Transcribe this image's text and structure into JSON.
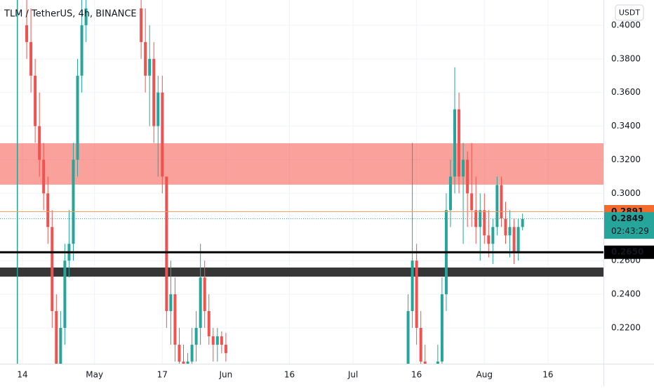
{
  "chart_data": {
    "type": "candlestick",
    "title": "TLM / TetherUS, 4h, BINANCE",
    "currency": "USDT",
    "up_color": "#26a69a",
    "down_color": "#ef5350",
    "x": [
      14,
      15,
      16,
      17,
      18,
      19,
      20,
      21,
      22,
      23,
      24,
      25,
      26,
      27,
      28,
      41,
      42,
      43,
      44,
      45,
      46,
      47,
      48,
      49,
      50,
      51,
      52,
      53,
      54,
      55,
      56,
      57,
      58,
      59,
      60,
      61,
      104,
      105,
      106,
      107,
      108,
      111,
      112,
      113,
      114,
      115,
      116,
      117,
      118,
      119,
      120,
      121,
      122,
      123,
      124,
      125,
      126,
      127,
      128,
      129,
      130,
      131
    ],
    "open": [
      0.4,
      0.39,
      0.37,
      0.34,
      0.32,
      0.3,
      0.28,
      0.23,
      0.19,
      0.22,
      0.26,
      0.27,
      0.32,
      0.37,
      0.4,
      0.41,
      0.39,
      0.37,
      0.38,
      0.34,
      0.36,
      0.31,
      0.23,
      0.24,
      0.21,
      0.2,
      0.195,
      0.2,
      0.21,
      0.22,
      0.25,
      0.23,
      0.215,
      0.21,
      0.215,
      0.21,
      0.19,
      0.23,
      0.26,
      0.22,
      0.2,
      0.19,
      0.2,
      0.24,
      0.29,
      0.31,
      0.35,
      0.31,
      0.32,
      0.3,
      0.29,
      0.28,
      0.29,
      0.275,
      0.27,
      0.28,
      0.305,
      0.285,
      0.275,
      0.28,
      0.265,
      0.28
    ],
    "high": [
      0.42,
      0.41,
      0.38,
      0.36,
      0.33,
      0.31,
      0.29,
      0.24,
      0.23,
      0.27,
      0.29,
      0.33,
      0.38,
      0.42,
      0.43,
      0.43,
      0.41,
      0.4,
      0.39,
      0.37,
      0.37,
      0.31,
      0.26,
      0.25,
      0.22,
      0.21,
      0.205,
      0.22,
      0.23,
      0.27,
      0.26,
      0.24,
      0.22,
      0.22,
      0.218,
      0.217,
      0.24,
      0.33,
      0.27,
      0.23,
      0.21,
      0.21,
      0.25,
      0.3,
      0.32,
      0.375,
      0.36,
      0.33,
      0.325,
      0.33,
      0.31,
      0.3,
      0.3,
      0.29,
      0.285,
      0.31,
      0.31,
      0.295,
      0.29,
      0.285,
      0.285,
      0.288
    ],
    "low": [
      0.38,
      0.36,
      0.33,
      0.31,
      0.29,
      0.27,
      0.22,
      0.18,
      0.18,
      0.21,
      0.25,
      0.26,
      0.31,
      0.36,
      0.39,
      0.38,
      0.36,
      0.34,
      0.33,
      0.31,
      0.3,
      0.22,
      0.21,
      0.2,
      0.19,
      0.19,
      0.185,
      0.19,
      0.2,
      0.21,
      0.22,
      0.21,
      0.2,
      0.2,
      0.205,
      0.2,
      0.18,
      0.22,
      0.21,
      0.19,
      0.18,
      0.18,
      0.19,
      0.23,
      0.28,
      0.3,
      0.3,
      0.27,
      0.28,
      0.28,
      0.27,
      0.26,
      0.27,
      0.262,
      0.258,
      0.275,
      0.28,
      0.27,
      0.262,
      0.258,
      0.26,
      0.278
    ],
    "close": [
      0.39,
      0.37,
      0.34,
      0.32,
      0.3,
      0.28,
      0.23,
      0.19,
      0.22,
      0.26,
      0.27,
      0.32,
      0.37,
      0.4,
      0.41,
      0.39,
      0.37,
      0.38,
      0.34,
      0.36,
      0.31,
      0.23,
      0.24,
      0.21,
      0.2,
      0.195,
      0.2,
      0.21,
      0.22,
      0.25,
      0.23,
      0.215,
      0.21,
      0.215,
      0.21,
      0.205,
      0.23,
      0.26,
      0.22,
      0.2,
      0.19,
      0.2,
      0.24,
      0.29,
      0.31,
      0.35,
      0.31,
      0.32,
      0.3,
      0.29,
      0.28,
      0.29,
      0.275,
      0.27,
      0.28,
      0.305,
      0.285,
      0.275,
      0.28,
      0.265,
      0.28,
      0.2849
    ],
    "xlim": [
      7.7,
      150.1
    ],
    "xticks": [
      {
        "value": 13,
        "label": "14"
      },
      {
        "value": 30,
        "label": "May"
      },
      {
        "value": 46,
        "label": "17"
      },
      {
        "value": 61,
        "label": "Jun"
      },
      {
        "value": 76,
        "label": "16"
      },
      {
        "value": 91,
        "label": "Jul"
      },
      {
        "value": 106,
        "label": "16"
      },
      {
        "value": 122,
        "label": "Aug"
      },
      {
        "value": 137,
        "label": "16"
      }
    ],
    "ylim": [
      0.1987,
      0.415
    ],
    "yticks": [
      {
        "value": 0.4,
        "label": "0.4000"
      },
      {
        "value": 0.38,
        "label": "0.3800"
      },
      {
        "value": 0.36,
        "label": "0.3600"
      },
      {
        "value": 0.34,
        "label": "0.3400"
      },
      {
        "value": 0.32,
        "label": "0.3200"
      },
      {
        "value": 0.3,
        "label": "0.3000"
      },
      {
        "value": 0.26,
        "label": "0.2600"
      },
      {
        "value": 0.24,
        "label": "0.2400"
      },
      {
        "value": 0.22,
        "label": "0.2200"
      }
    ],
    "zones": [
      {
        "from": 0.3052,
        "to": 0.3298,
        "color": "rgba(244,67,54,0.5)"
      },
      {
        "from": 0.2505,
        "to": 0.2559,
        "color": "#363636"
      }
    ],
    "vline": {
      "x": 11.8,
      "color": "#26a69a"
    },
    "levels": [
      {
        "price": 0.2891,
        "color": "#f5a060",
        "box": "#f26b2a",
        "style": "solid"
      },
      {
        "price": 0.2849,
        "color": "#26a69a",
        "box": "#26a69a",
        "style": "dotted",
        "countdown": "02:43:29"
      },
      {
        "price": {
          "value": 0.265,
          "label": "0.2650"
        },
        "color": "#000000",
        "box": "#000000",
        "style": "thick"
      }
    ]
  }
}
